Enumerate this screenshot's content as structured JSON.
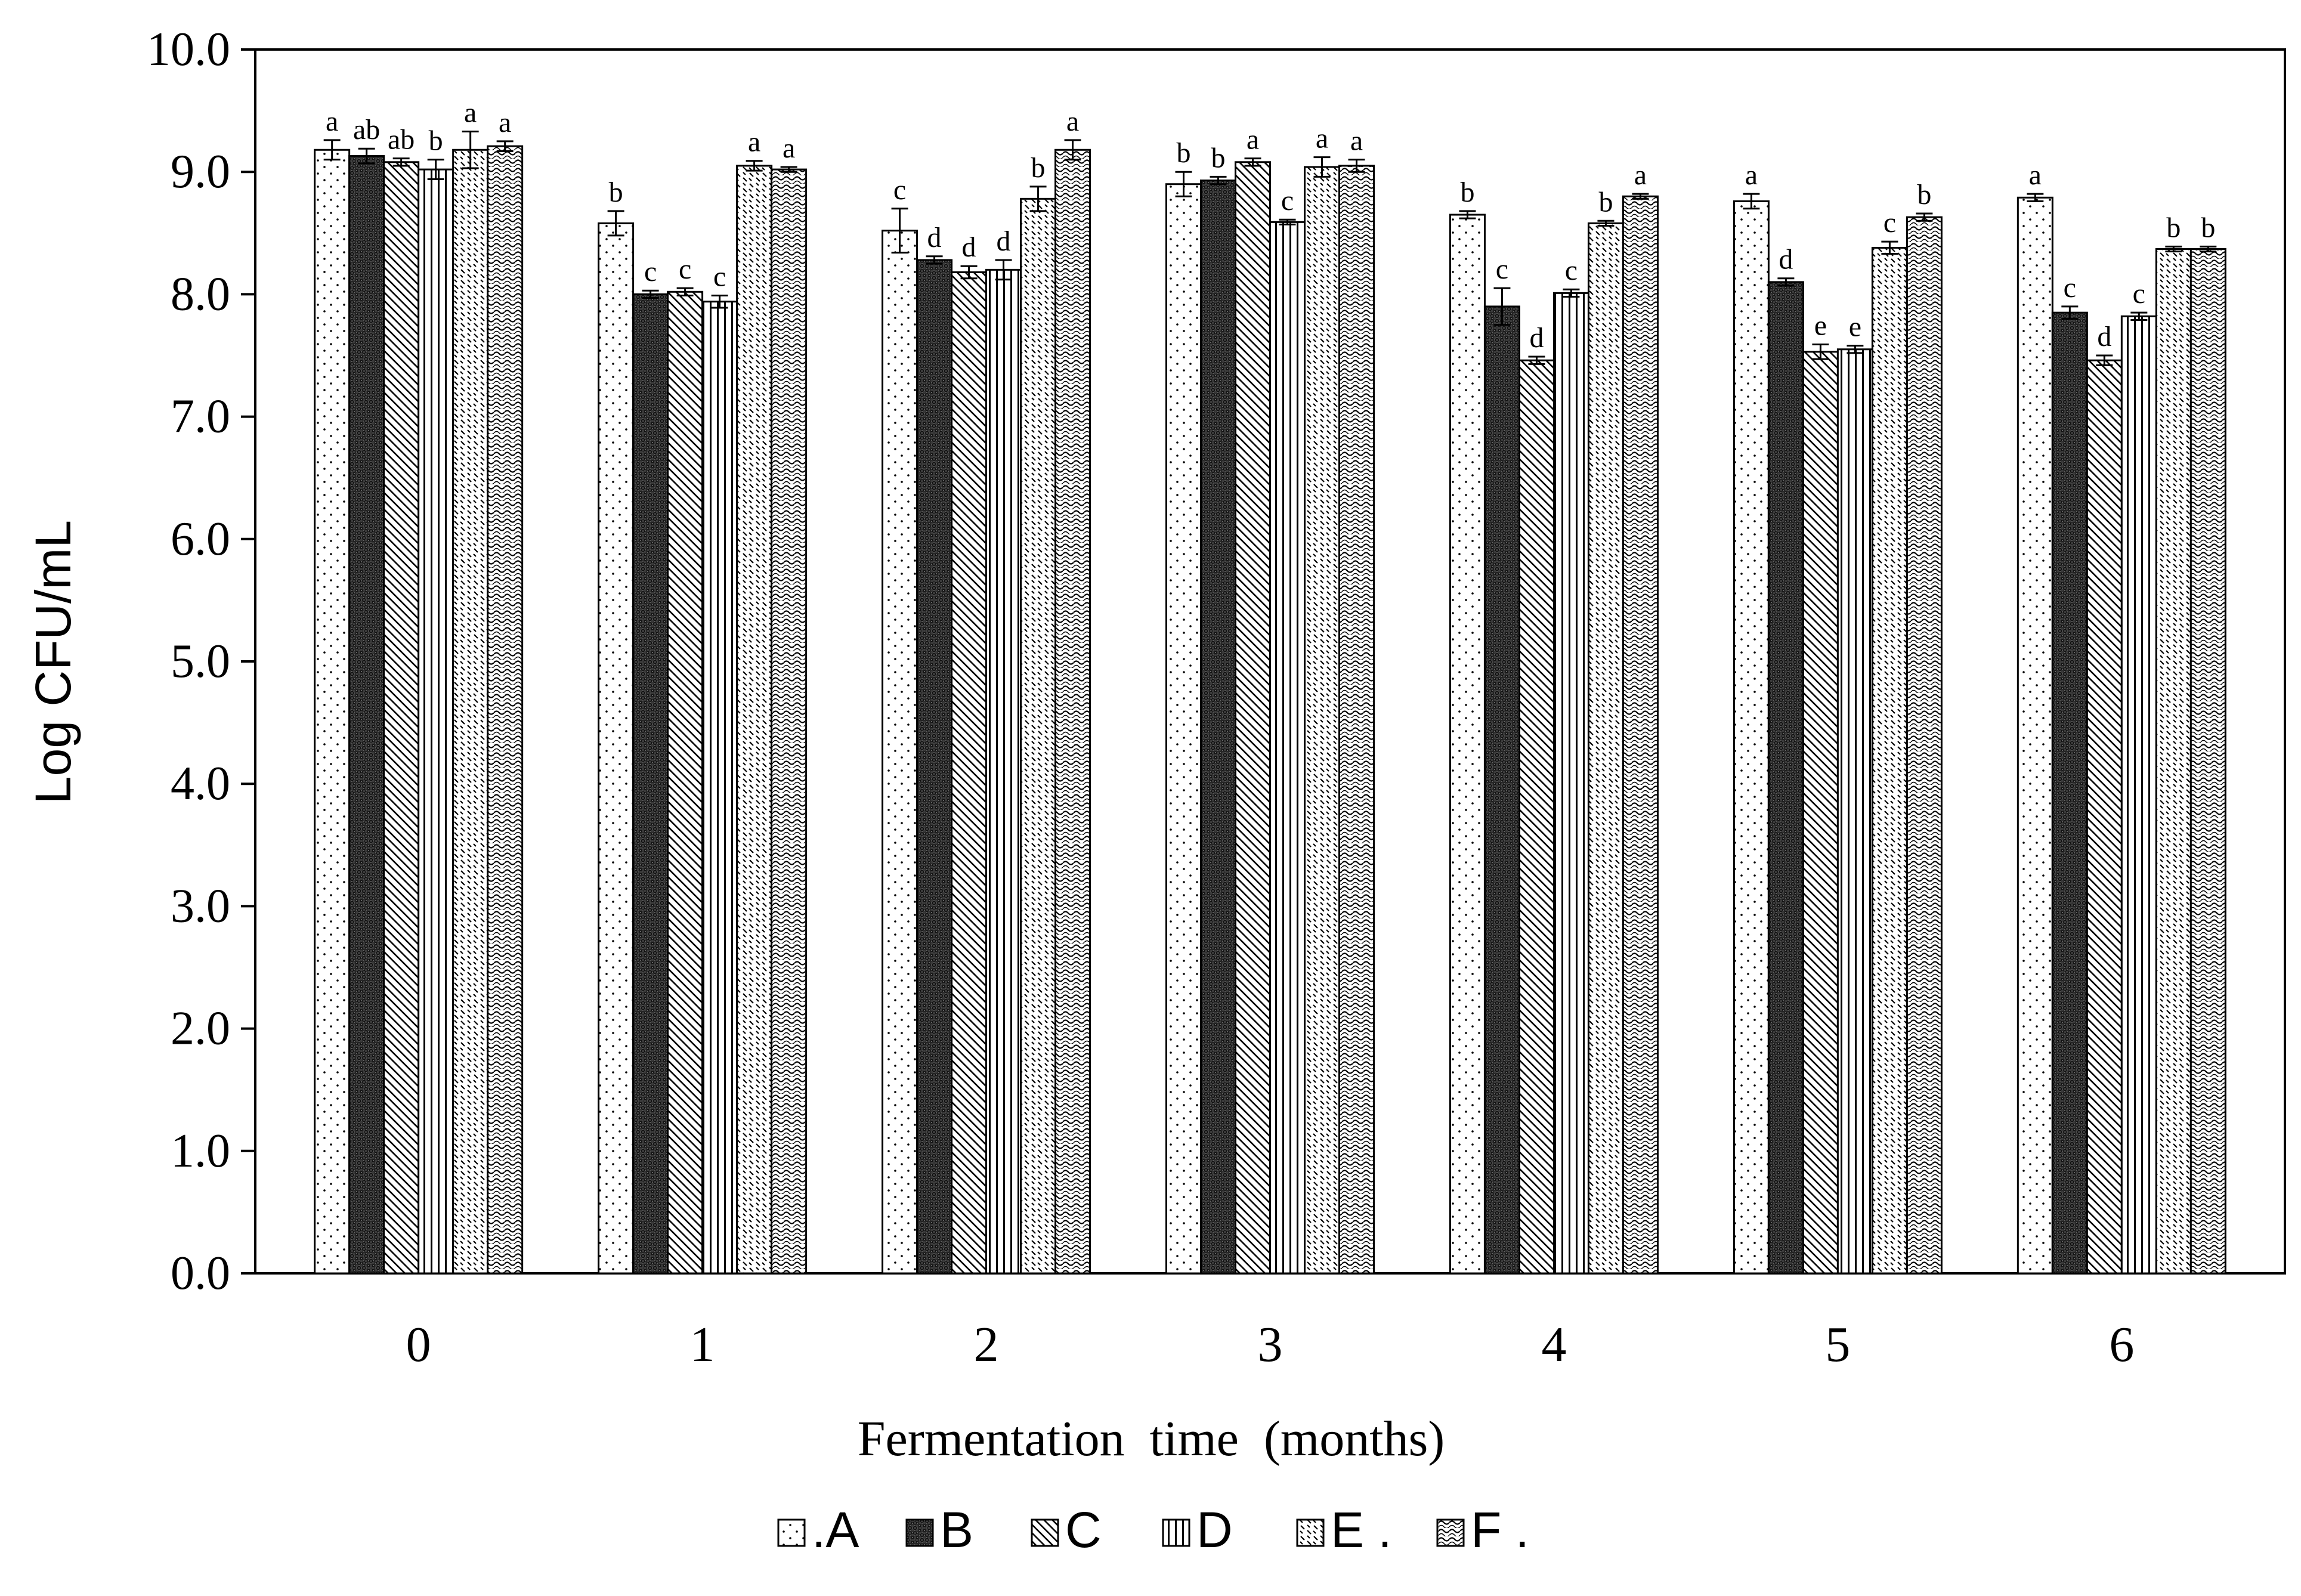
{
  "chart_data": {
    "type": "bar",
    "title": "",
    "xlabel": "Fermentation  time  (months)",
    "ylabel": "Log CFU/mL",
    "ylim": [
      0,
      10
    ],
    "yticks": [
      "0.0",
      "1.0",
      "2.0",
      "3.0",
      "4.0",
      "5.0",
      "6.0",
      "7.0",
      "8.0",
      "9.0",
      "10.0"
    ],
    "categories": [
      "0",
      "1",
      "2",
      "3",
      "4",
      "5",
      "6"
    ],
    "grid": false,
    "legend_position": "bottom",
    "legend": [
      {
        "text": ".A"
      },
      {
        "text": "B"
      },
      {
        "text": "C"
      },
      {
        "text": "D"
      },
      {
        "text": "E ."
      },
      {
        "text": "F ."
      }
    ],
    "series": [
      {
        "values": [
          9.18,
          8.58,
          8.52,
          8.9,
          8.65,
          8.76,
          8.79
        ],
        "errors": [
          0.08,
          0.1,
          0.18,
          0.1,
          0.03,
          0.06,
          0.03
        ],
        "letters": [
          "a",
          "b",
          "c",
          "b",
          "b",
          "a",
          "a"
        ]
      },
      {
        "values": [
          9.13,
          8.0,
          8.28,
          8.93,
          7.9,
          8.1,
          7.85
        ],
        "errors": [
          0.06,
          0.03,
          0.03,
          0.03,
          0.15,
          0.03,
          0.05
        ],
        "letters": [
          "ab",
          "c",
          "d",
          "b",
          "c",
          "d",
          "c"
        ]
      },
      {
        "values": [
          9.08,
          8.02,
          8.18,
          9.08,
          7.46,
          7.53,
          7.46
        ],
        "errors": [
          0.03,
          0.03,
          0.05,
          0.03,
          0.03,
          0.06,
          0.04
        ],
        "letters": [
          "ab",
          "c",
          "d",
          "a",
          "d",
          "e",
          "d"
        ]
      },
      {
        "values": [
          9.02,
          7.94,
          8.2,
          8.59,
          8.01,
          7.55,
          7.82
        ],
        "errors": [
          0.08,
          0.05,
          0.08,
          0.02,
          0.03,
          0.03,
          0.03
        ],
        "letters": [
          "b",
          "c",
          "d",
          "c",
          "c",
          "e",
          "c"
        ]
      },
      {
        "values": [
          9.18,
          9.05,
          8.78,
          9.04,
          8.58,
          8.38,
          8.37
        ],
        "errors": [
          0.15,
          0.04,
          0.1,
          0.08,
          0.02,
          0.05,
          0.02
        ],
        "letters": [
          "a",
          "a",
          "b",
          "a",
          "b",
          "c",
          "b"
        ]
      },
      {
        "values": [
          9.21,
          9.02,
          9.18,
          9.05,
          8.8,
          8.63,
          8.37
        ],
        "errors": [
          0.04,
          0.02,
          0.08,
          0.05,
          0.02,
          0.03,
          0.02
        ],
        "letters": [
          "a",
          "a",
          "a",
          "a",
          "a",
          "b",
          "b"
        ]
      }
    ]
  }
}
